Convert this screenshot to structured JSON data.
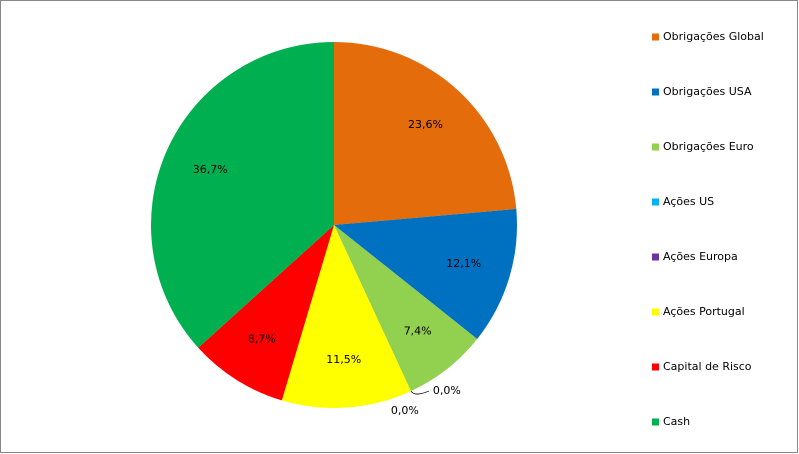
{
  "chart_data": {
    "type": "pie",
    "categories": [
      "Obrigações Global",
      "Obrigações USA",
      "Obrigações Euro",
      "Ações US",
      "Ações Europa",
      "Ações Portugal",
      "Capital de Risco",
      "Cash"
    ],
    "values": [
      23.6,
      12.1,
      7.4,
      0.0,
      0.0,
      11.5,
      8.7,
      36.7
    ],
    "value_labels": [
      "23,6%",
      "12,1%",
      "7,4%",
      "0,0%",
      "0,0%",
      "11,5%",
      "8,7%",
      "36,7%"
    ],
    "colors": [
      "#e46c0a",
      "#0070c0",
      "#92d050",
      "#00b0f0",
      "#7030a0",
      "#ffff00",
      "#ff0000",
      "#00b050"
    ],
    "legend": "right"
  }
}
